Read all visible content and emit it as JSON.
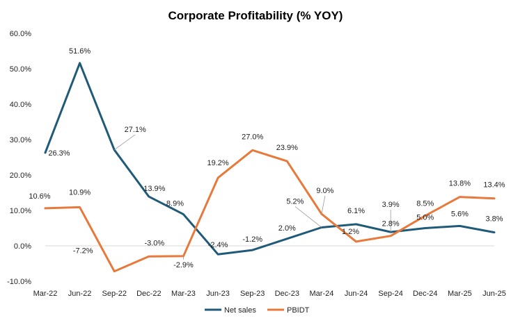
{
  "chart_data": {
    "type": "line",
    "title": "Corporate Profitability (% YOY)",
    "xlabel": "",
    "ylabel": "",
    "categories": [
      "Mar-22",
      "Jun-22",
      "Sep-22",
      "Dec-22",
      "Mar-23",
      "Jun-23",
      "Sep-23",
      "Dec-23",
      "Mar-24",
      "Jun-24",
      "Sep-24",
      "Dec-24",
      "Mar-25",
      "Jun-25"
    ],
    "y_ticks": [
      "60.0%",
      "50.0%",
      "40.0%",
      "30.0%",
      "20.0%",
      "10.0%",
      "0.0%",
      "-10.0%"
    ],
    "ylim": [
      -10,
      60
    ],
    "grid": false,
    "legend_position": "bottom",
    "series": [
      {
        "name": "Net sales",
        "color": "#1f5a78",
        "values": [
          26.3,
          51.6,
          27.1,
          13.9,
          8.9,
          -2.4,
          -1.2,
          2.0,
          5.2,
          6.1,
          3.9,
          5.0,
          5.6,
          3.8
        ],
        "labels": [
          "26.3%",
          "51.6%",
          "27.1%",
          "13.9%",
          "8.9%",
          "-2.4%",
          "-1.2%",
          "2.0%",
          "5.2%",
          "6.1%",
          "3.9%",
          "5.0%",
          "5.6%",
          "3.8%"
        ]
      },
      {
        "name": "PBIDT",
        "color": "#e8793a",
        "values": [
          10.6,
          10.9,
          -7.2,
          -3.0,
          -2.9,
          19.2,
          27.0,
          23.9,
          9.0,
          1.2,
          2.8,
          8.5,
          13.8,
          13.4
        ],
        "labels": [
          "10.6%",
          "10.9%",
          "-7.2%",
          "-3.0%",
          "-2.9%",
          "19.2%",
          "27.0%",
          "23.9%",
          "9.0%",
          "1.2%",
          "2.8%",
          "8.5%",
          "13.8%",
          "13.4%"
        ]
      }
    ]
  }
}
